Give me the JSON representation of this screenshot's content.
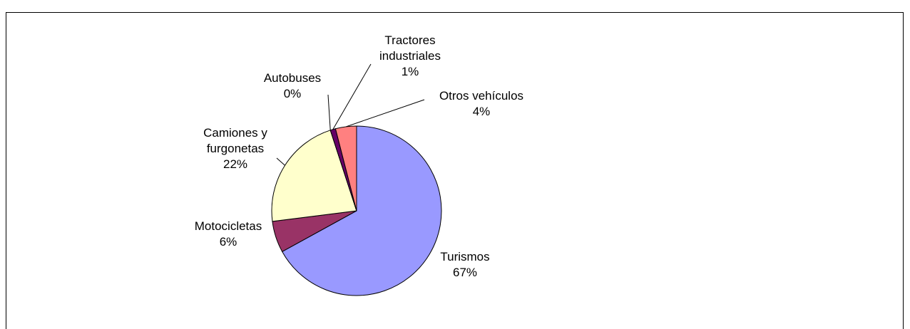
{
  "chart_data": {
    "type": "pie",
    "categories": [
      "Turismos",
      "Motocicletas",
      "Camiones y furgonetas",
      "Autobuses",
      "Tractores industriales",
      "Otros vehículos"
    ],
    "values": [
      67,
      6,
      22,
      0,
      1,
      4
    ],
    "value_labels": [
      "67%",
      "6%",
      "22%",
      "0%",
      "1%",
      "4%"
    ],
    "colors": [
      "#9999ff",
      "#993366",
      "#ffffcc",
      "#ccffff",
      "#660066",
      "#ff8080"
    ]
  }
}
